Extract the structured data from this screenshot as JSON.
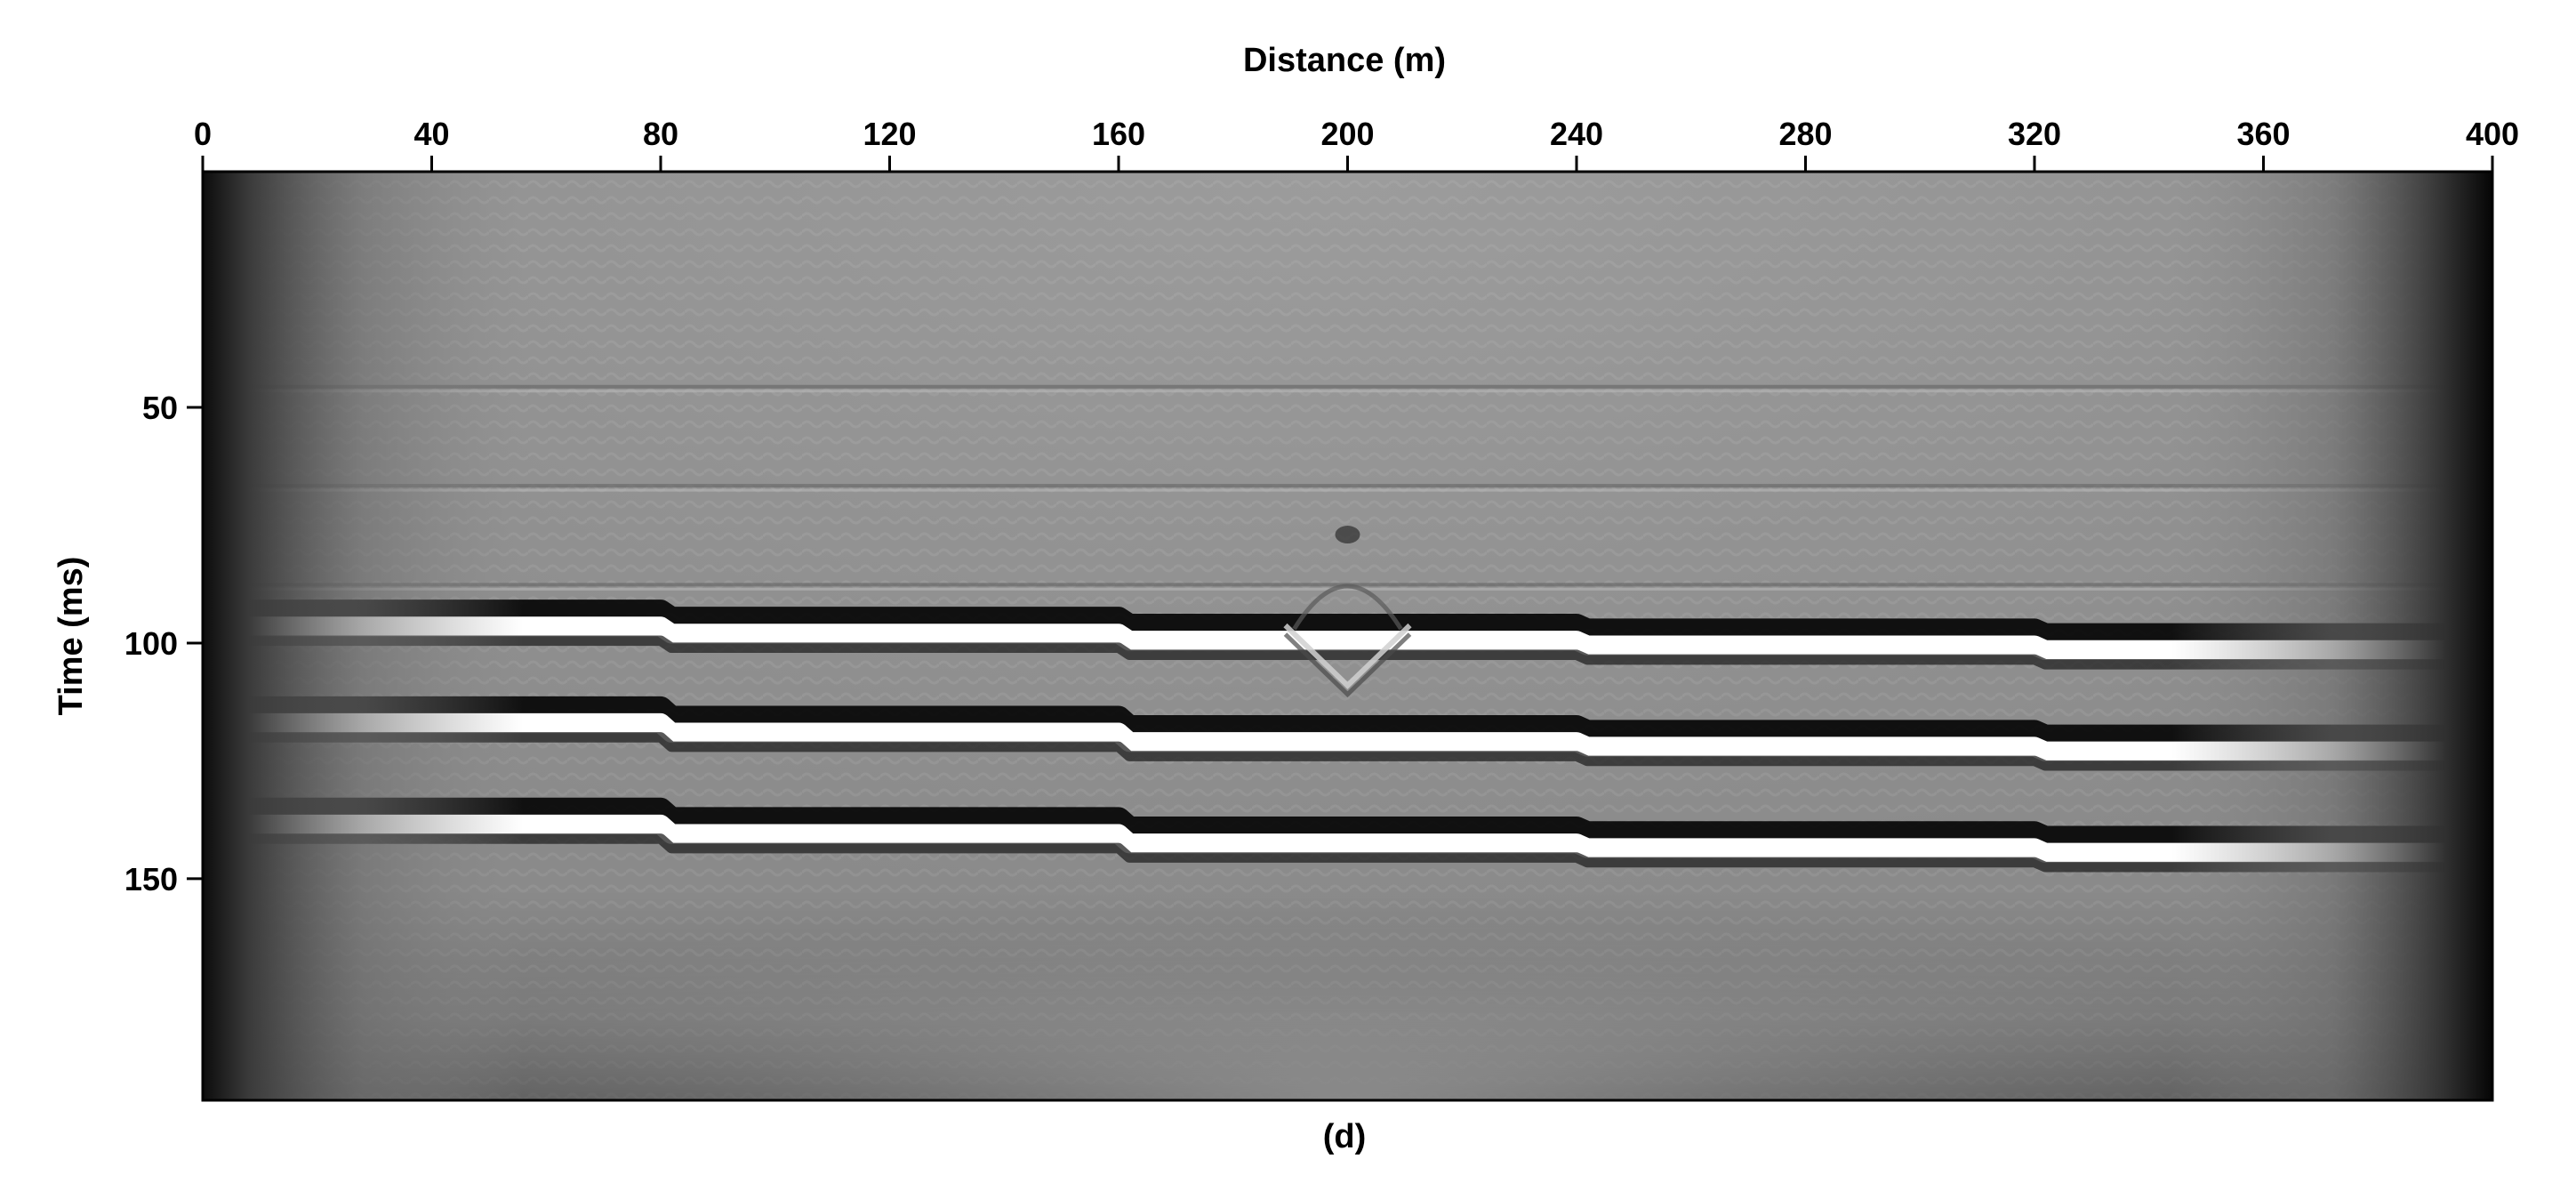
{
  "chart_data": {
    "type": "heatmap",
    "title": "",
    "xlabel": "Distance (m)",
    "ylabel": "Time (ms)",
    "caption": "(d)",
    "xlim": [
      0,
      400
    ],
    "ylim": [
      197,
      0
    ],
    "x_axis_position": "top",
    "x_ticks": [
      0,
      40,
      80,
      120,
      160,
      200,
      240,
      280,
      320,
      360,
      400
    ],
    "y_ticks": [
      50,
      100,
      150
    ],
    "colormap": "grayscale",
    "grid": false,
    "reflectors": [
      {
        "name": "",
        "segments": [
          {
            "x": [
              0,
              80
            ],
            "t": 96.5
          },
          {
            "x": [
              80,
              160
            ],
            "t": 98
          },
          {
            "x": [
              160,
              240
            ],
            "t": 99.5
          },
          {
            "x": [
              240,
              320
            ],
            "t": 100.5
          },
          {
            "x": [
              320,
              400
            ],
            "t": 101.5
          }
        ]
      },
      {
        "name": "",
        "segments": [
          {
            "x": [
              0,
              80
            ],
            "t": 117
          },
          {
            "x": [
              80,
              160
            ],
            "t": 119
          },
          {
            "x": [
              160,
              240
            ],
            "t": 121
          },
          {
            "x": [
              240,
              320
            ],
            "t": 122
          },
          {
            "x": [
              320,
              400
            ],
            "t": 123
          }
        ]
      },
      {
        "name": "",
        "segments": [
          {
            "x": [
              0,
              80
            ],
            "t": 138.5
          },
          {
            "x": [
              80,
              160
            ],
            "t": 140.5
          },
          {
            "x": [
              160,
              240
            ],
            "t": 142.5
          },
          {
            "x": [
              240,
              320
            ],
            "t": 143.5
          },
          {
            "x": [
              320,
              400
            ],
            "t": 144.5
          }
        ]
      }
    ],
    "faint_horizons_ms": [
      46,
      67,
      88
    ],
    "diffraction": {
      "x": 200,
      "t_top": 77,
      "t_center": 97,
      "t_bottom": 109
    }
  }
}
